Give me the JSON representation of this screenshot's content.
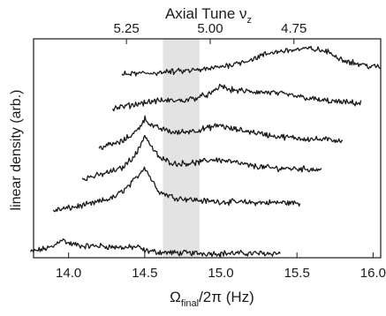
{
  "chart_data": {
    "type": "line",
    "xlabel_bottom": {
      "symbol": "Ω",
      "sub": "final",
      "rest": "/2π  (Hz)"
    },
    "xlabel_top": {
      "text": "Axial Tune ν",
      "sub": "z"
    },
    "ylabel": "linear density (arb.)",
    "xlim": [
      13.77,
      16.05
    ],
    "y_ticks_shown": false,
    "x_ticks_bottom": [
      "14.0",
      "14.5",
      "15.0",
      "15.5",
      "16.0"
    ],
    "x_ticks_bottom_values": [
      14.0,
      14.5,
      15.0,
      15.5,
      16.0
    ],
    "x_ticks_top": [
      "5.25",
      "5.00",
      "4.75"
    ],
    "x_ticks_top_at_bottom_values": [
      14.38,
      14.93,
      15.48
    ],
    "shaded_band": {
      "x_start": 14.62,
      "x_end": 14.86,
      "color": "#e3e3e3"
    },
    "line_color": "#1a1a1a",
    "series": [
      {
        "x_start": 13.75,
        "x_end": 15.39,
        "points": [
          [
            13.75,
            0.6
          ],
          [
            13.9,
            3.0
          ],
          [
            13.95,
            6.5
          ],
          [
            14.0,
            4.5
          ],
          [
            14.1,
            3.2
          ],
          [
            14.2,
            3.4
          ],
          [
            14.3,
            2.8
          ],
          [
            14.4,
            2.6
          ],
          [
            14.45,
            3.0
          ],
          [
            14.5,
            1.2
          ],
          [
            14.6,
            0.5
          ],
          [
            14.7,
            0.2
          ],
          [
            14.9,
            0.0
          ],
          [
            15.2,
            0.0
          ],
          [
            15.39,
            0.0
          ]
        ]
      },
      {
        "x_start": 13.9,
        "x_end": 15.52,
        "points": [
          [
            13.9,
            0.2
          ],
          [
            14.0,
            1.3
          ],
          [
            14.15,
            3.2
          ],
          [
            14.3,
            6.2
          ],
          [
            14.4,
            11.5
          ],
          [
            14.45,
            15.5
          ],
          [
            14.5,
            20.0
          ],
          [
            14.55,
            13.5
          ],
          [
            14.6,
            8.5
          ],
          [
            14.7,
            6.0
          ],
          [
            14.9,
            4.5
          ],
          [
            15.0,
            4.2
          ],
          [
            15.2,
            3.8
          ],
          [
            15.4,
            3.8
          ],
          [
            15.52,
            3.5
          ]
        ]
      },
      {
        "x_start": 14.09,
        "x_end": 15.66,
        "points": [
          [
            14.09,
            0.3
          ],
          [
            14.2,
            1.8
          ],
          [
            14.35,
            5.0
          ],
          [
            14.45,
            12.0
          ],
          [
            14.5,
            20.0
          ],
          [
            14.55,
            14.0
          ],
          [
            14.6,
            9.5
          ],
          [
            14.7,
            7.0
          ],
          [
            14.85,
            7.5
          ],
          [
            14.95,
            9.0
          ],
          [
            15.05,
            8.2
          ],
          [
            15.2,
            6.0
          ],
          [
            15.35,
            5.0
          ],
          [
            15.5,
            4.8
          ],
          [
            15.66,
            4.3
          ]
        ]
      },
      {
        "x_start": 14.2,
        "x_end": 15.8,
        "points": [
          [
            14.2,
            0.3
          ],
          [
            14.35,
            3.0
          ],
          [
            14.45,
            8.0
          ],
          [
            14.5,
            13.5
          ],
          [
            14.55,
            10.0
          ],
          [
            14.7,
            7.0
          ],
          [
            14.85,
            8.2
          ],
          [
            15.0,
            10.5
          ],
          [
            15.05,
            9.0
          ],
          [
            15.2,
            7.5
          ],
          [
            15.35,
            5.5
          ],
          [
            15.5,
            4.6
          ],
          [
            15.65,
            4.0
          ],
          [
            15.8,
            3.6
          ]
        ]
      },
      {
        "x_start": 14.29,
        "x_end": 15.92,
        "points": [
          [
            14.29,
            0.3
          ],
          [
            14.4,
            1.8
          ],
          [
            14.5,
            3.2
          ],
          [
            14.6,
            4.0
          ],
          [
            14.75,
            4.0
          ],
          [
            14.85,
            5.5
          ],
          [
            14.95,
            7.5
          ],
          [
            15.0,
            11.0
          ],
          [
            15.05,
            9.0
          ],
          [
            15.2,
            8.0
          ],
          [
            15.35,
            7.5
          ],
          [
            15.5,
            6.0
          ],
          [
            15.65,
            4.2
          ],
          [
            15.8,
            3.2
          ],
          [
            15.92,
            2.8
          ]
        ]
      },
      {
        "x_start": 14.35,
        "x_end": 16.05,
        "points": [
          [
            14.35,
            0.3
          ],
          [
            14.5,
            0.8
          ],
          [
            14.7,
            1.5
          ],
          [
            14.9,
            2.5
          ],
          [
            15.05,
            4.5
          ],
          [
            15.2,
            7.0
          ],
          [
            15.3,
            9.5
          ],
          [
            15.4,
            11.0
          ],
          [
            15.5,
            11.5
          ],
          [
            15.6,
            12.0
          ],
          [
            15.7,
            10.5
          ],
          [
            15.8,
            7.0
          ],
          [
            15.9,
            5.0
          ],
          [
            16.0,
            3.8
          ],
          [
            16.05,
            3.5
          ]
        ]
      }
    ]
  }
}
